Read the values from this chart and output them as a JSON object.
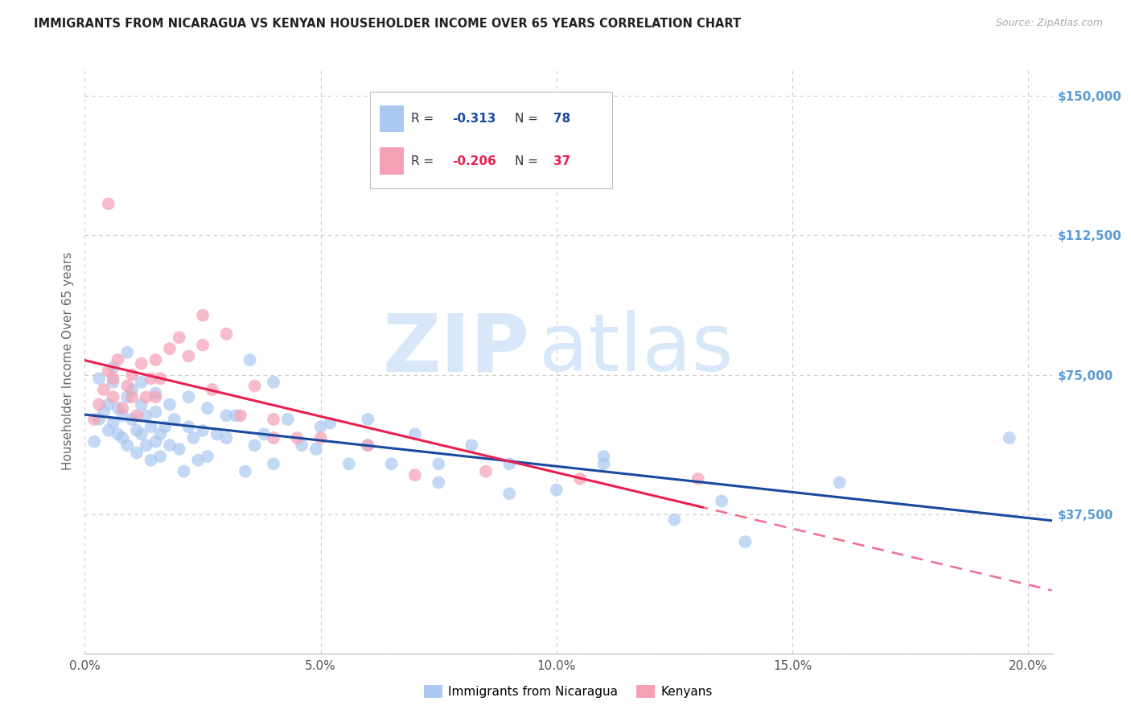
{
  "title": "IMMIGRANTS FROM NICARAGUA VS KENYAN HOUSEHOLDER INCOME OVER 65 YEARS CORRELATION CHART",
  "source": "Source: ZipAtlas.com",
  "ylabel": "Householder Income Over 65 years",
  "xlim": [
    0.0,
    0.205
  ],
  "ylim": [
    0,
    157500
  ],
  "y_tick_vals": [
    0,
    37500,
    75000,
    112500,
    150000
  ],
  "y_tick_labels": [
    "",
    "$37,500",
    "$75,000",
    "$112,500",
    "$150,000"
  ],
  "x_tick_vals": [
    0.0,
    0.05,
    0.1,
    0.15,
    0.2
  ],
  "x_tick_labels": [
    "0.0%",
    "5.0%",
    "10.0%",
    "15.0%",
    "20.0%"
  ],
  "r_blue": "-0.313",
  "n_blue": "78",
  "r_pink": "-0.206",
  "n_pink": "37",
  "legend1_label": "Immigrants from Nicaragua",
  "legend2_label": "Kenyans",
  "blue_color": "#aac8f0",
  "pink_color": "#f5a0b5",
  "trend_blue_color": "#1a4a9e",
  "trend_pink_color": "#e82050",
  "title_color": "#222222",
  "source_color": "#aaaaaa",
  "axis_right_color": "#5b9bd5",
  "grid_color": "#cccccc",
  "watermark_color": "#d8e8f8",
  "blue_x": [
    0.002,
    0.003,
    0.004,
    0.005,
    0.005,
    0.006,
    0.006,
    0.007,
    0.007,
    0.008,
    0.008,
    0.009,
    0.009,
    0.01,
    0.01,
    0.011,
    0.011,
    0.012,
    0.012,
    0.013,
    0.013,
    0.014,
    0.014,
    0.015,
    0.015,
    0.016,
    0.016,
    0.017,
    0.018,
    0.019,
    0.02,
    0.021,
    0.022,
    0.023,
    0.024,
    0.025,
    0.026,
    0.028,
    0.03,
    0.032,
    0.034,
    0.036,
    0.038,
    0.04,
    0.043,
    0.046,
    0.049,
    0.052,
    0.056,
    0.06,
    0.065,
    0.07,
    0.075,
    0.082,
    0.09,
    0.1,
    0.11,
    0.125,
    0.14,
    0.16,
    0.003,
    0.006,
    0.009,
    0.012,
    0.015,
    0.018,
    0.022,
    0.026,
    0.03,
    0.035,
    0.04,
    0.05,
    0.06,
    0.075,
    0.09,
    0.11,
    0.135,
    0.196
  ],
  "blue_y": [
    57000,
    63000,
    65000,
    67000,
    60000,
    73000,
    62000,
    66000,
    59000,
    64000,
    58000,
    69000,
    56000,
    63000,
    71000,
    60000,
    54000,
    67000,
    59000,
    64000,
    56000,
    61000,
    52000,
    57000,
    65000,
    53000,
    59000,
    61000,
    56000,
    63000,
    55000,
    49000,
    61000,
    58000,
    52000,
    60000,
    53000,
    59000,
    58000,
    64000,
    49000,
    56000,
    59000,
    51000,
    63000,
    56000,
    55000,
    62000,
    51000,
    63000,
    51000,
    59000,
    46000,
    56000,
    51000,
    44000,
    53000,
    36000,
    30000,
    46000,
    74000,
    77000,
    81000,
    73000,
    70000,
    67000,
    69000,
    66000,
    64000,
    79000,
    73000,
    61000,
    56000,
    51000,
    43000,
    51000,
    41000,
    58000
  ],
  "pink_x": [
    0.002,
    0.003,
    0.004,
    0.005,
    0.006,
    0.006,
    0.007,
    0.008,
    0.009,
    0.01,
    0.01,
    0.011,
    0.012,
    0.013,
    0.014,
    0.015,
    0.016,
    0.018,
    0.02,
    0.022,
    0.025,
    0.027,
    0.03,
    0.033,
    0.036,
    0.04,
    0.045,
    0.05,
    0.06,
    0.07,
    0.085,
    0.105,
    0.13,
    0.005,
    0.015,
    0.025,
    0.04
  ],
  "pink_y": [
    63000,
    67000,
    71000,
    76000,
    69000,
    74000,
    79000,
    66000,
    72000,
    69000,
    75000,
    64000,
    78000,
    69000,
    74000,
    69000,
    74000,
    82000,
    85000,
    80000,
    91000,
    71000,
    86000,
    64000,
    72000,
    63000,
    58000,
    58000,
    56000,
    48000,
    49000,
    47000,
    47000,
    121000,
    79000,
    83000,
    58000
  ]
}
